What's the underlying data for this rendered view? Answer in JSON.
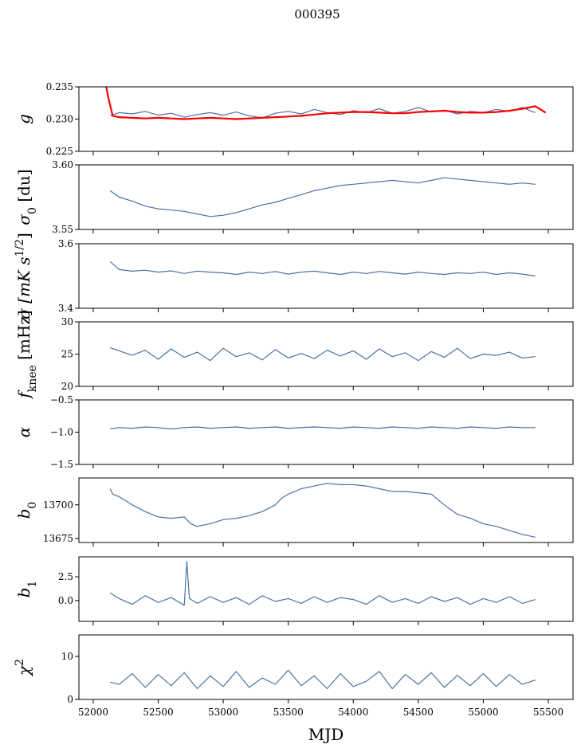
{
  "title": "000395",
  "xlabel": "MJD",
  "colors": {
    "series": "#4c72a0",
    "gain_fit": "#ff0000",
    "frame": "#000000"
  },
  "chart_data": [
    {
      "type": "line",
      "id": "g",
      "ylabel": "g",
      "ylabel_sub": "",
      "ylim": [
        0.225,
        0.235
      ],
      "yticks": [
        0.225,
        0.23,
        0.235
      ],
      "ytick_labels": [
        "0.225",
        "0.230",
        "0.235"
      ],
      "series": [
        {
          "name": "g",
          "color": "#4c72a0",
          "x": [
            52130,
            52200,
            52300,
            52400,
            52500,
            52600,
            52700,
            52800,
            52900,
            53000,
            53100,
            53200,
            53300,
            53400,
            53500,
            53600,
            53700,
            53800,
            53900,
            54000,
            54100,
            54200,
            54300,
            54400,
            54500,
            54600,
            54700,
            54800,
            54900,
            55000,
            55100,
            55200,
            55300,
            55400
          ],
          "y": [
            0.2305,
            0.231,
            0.2308,
            0.2312,
            0.2306,
            0.2309,
            0.2303,
            0.2307,
            0.231,
            0.2306,
            0.2311,
            0.2305,
            0.2302,
            0.2309,
            0.2312,
            0.2308,
            0.2315,
            0.231,
            0.2307,
            0.2313,
            0.231,
            0.2316,
            0.2309,
            0.2312,
            0.2318,
            0.2311,
            0.2314,
            0.2308,
            0.2312,
            0.231,
            0.2315,
            0.2312,
            0.2318,
            0.231
          ]
        },
        {
          "name": "gain fit",
          "color": "#ff0000",
          "x": [
            52100,
            52120,
            52150,
            52200,
            52300,
            52400,
            52500,
            52600,
            52700,
            52800,
            52900,
            53000,
            53100,
            53200,
            53300,
            53400,
            53500,
            53600,
            53700,
            53800,
            53900,
            54000,
            54100,
            54200,
            54300,
            54400,
            54500,
            54600,
            54700,
            54800,
            54900,
            55000,
            55100,
            55200,
            55300,
            55400,
            55480
          ],
          "y": [
            0.235,
            0.233,
            0.2305,
            0.2303,
            0.2302,
            0.2301,
            0.2302,
            0.2301,
            0.23,
            0.2301,
            0.2302,
            0.2301,
            0.23,
            0.2301,
            0.2302,
            0.2303,
            0.2304,
            0.2305,
            0.2307,
            0.2309,
            0.231,
            0.2311,
            0.2311,
            0.231,
            0.2309,
            0.2309,
            0.2311,
            0.2312,
            0.2313,
            0.2311,
            0.231,
            0.231,
            0.2311,
            0.2313,
            0.2316,
            0.232,
            0.231
          ]
        }
      ]
    },
    {
      "type": "line",
      "id": "sigma0",
      "ylabel": "σ",
      "ylabel_sub": "0",
      "ylabel_suffix": " [du]",
      "ylim": [
        3.55,
        3.6
      ],
      "yticks": [
        3.55,
        3.6
      ],
      "ytick_labels": [
        "3.55",
        "3.60"
      ],
      "series": [
        {
          "name": "sigma0",
          "color": "#4c72a0",
          "x": [
            52130,
            52200,
            52300,
            52400,
            52500,
            52600,
            52700,
            52800,
            52900,
            53000,
            53100,
            53200,
            53300,
            53400,
            53500,
            53600,
            53700,
            53800,
            53900,
            54000,
            54100,
            54200,
            54300,
            54400,
            54500,
            54600,
            54700,
            54800,
            54900,
            55000,
            55100,
            55200,
            55300,
            55400
          ],
          "y": [
            3.58,
            3.575,
            3.572,
            3.568,
            3.566,
            3.565,
            3.564,
            3.562,
            3.56,
            3.561,
            3.563,
            3.566,
            3.569,
            3.571,
            3.574,
            3.577,
            3.58,
            3.582,
            3.584,
            3.585,
            3.586,
            3.587,
            3.588,
            3.587,
            3.586,
            3.588,
            3.59,
            3.589,
            3.588,
            3.587,
            3.586,
            3.585,
            3.586,
            3.585
          ]
        }
      ]
    },
    {
      "type": "line",
      "id": "sigma",
      "ylabel": "σ [mK s",
      "ylabel_sup": "1/2",
      "ylabel_suffix": "]",
      "ylim": [
        3.4,
        3.6
      ],
      "yticks": [
        3.4,
        3.6
      ],
      "ytick_labels": [
        "3.4",
        "3.6"
      ],
      "series": [
        {
          "name": "sigma",
          "color": "#4c72a0",
          "x": [
            52130,
            52200,
            52300,
            52400,
            52500,
            52600,
            52700,
            52800,
            52900,
            53000,
            53100,
            53200,
            53300,
            53400,
            53500,
            53600,
            53700,
            53800,
            53900,
            54000,
            54100,
            54200,
            54300,
            54400,
            54500,
            54600,
            54700,
            54800,
            54900,
            55000,
            55100,
            55200,
            55300,
            55400
          ],
          "y": [
            3.545,
            3.52,
            3.515,
            3.518,
            3.512,
            3.516,
            3.508,
            3.515,
            3.512,
            3.51,
            3.505,
            3.512,
            3.508,
            3.514,
            3.506,
            3.512,
            3.515,
            3.51,
            3.505,
            3.512,
            3.508,
            3.514,
            3.51,
            3.506,
            3.512,
            3.508,
            3.505,
            3.51,
            3.508,
            3.512,
            3.505,
            3.51,
            3.506,
            3.5
          ]
        }
      ]
    },
    {
      "type": "line",
      "id": "fknee",
      "ylabel": "f",
      "ylabel_sub": "knee",
      "ylabel_suffix": " [mHz]",
      "ylim": [
        20,
        30
      ],
      "yticks": [
        20,
        25,
        30
      ],
      "ytick_labels": [
        "20",
        "25",
        "30"
      ],
      "series": [
        {
          "name": "fknee",
          "color": "#4c72a0",
          "x": [
            52130,
            52200,
            52300,
            52400,
            52500,
            52600,
            52700,
            52800,
            52900,
            53000,
            53100,
            53200,
            53300,
            53400,
            53500,
            53600,
            53700,
            53800,
            53900,
            54000,
            54100,
            54200,
            54300,
            54400,
            54500,
            54600,
            54700,
            54800,
            54900,
            55000,
            55100,
            55200,
            55300,
            55400
          ],
          "y": [
            26.0,
            25.5,
            24.8,
            25.6,
            24.2,
            25.8,
            24.5,
            25.3,
            24.0,
            25.9,
            24.6,
            25.2,
            24.1,
            25.7,
            24.4,
            25.1,
            24.3,
            25.6,
            24.7,
            25.5,
            24.2,
            25.8,
            24.6,
            25.2,
            24.0,
            25.4,
            24.5,
            25.9,
            24.3,
            25.0,
            24.8,
            25.3,
            24.4,
            24.6
          ]
        }
      ]
    },
    {
      "type": "line",
      "id": "alpha",
      "ylabel": "α",
      "ylabel_sub": "",
      "ylim": [
        -1.5,
        -0.5
      ],
      "yticks": [
        -1.5,
        -1.0,
        -0.5
      ],
      "ytick_labels": [
        "−1.5",
        "−1.0",
        "−0.5"
      ],
      "series": [
        {
          "name": "alpha",
          "color": "#4c72a0",
          "x": [
            52130,
            52200,
            52300,
            52400,
            52500,
            52600,
            52700,
            52800,
            52900,
            53000,
            53100,
            53200,
            53300,
            53400,
            53500,
            53600,
            53700,
            53800,
            53900,
            54000,
            54100,
            54200,
            54300,
            54400,
            54500,
            54600,
            54700,
            54800,
            54900,
            55000,
            55100,
            55200,
            55300,
            55400
          ],
          "y": [
            -0.95,
            -0.93,
            -0.94,
            -0.92,
            -0.93,
            -0.95,
            -0.93,
            -0.92,
            -0.94,
            -0.93,
            -0.92,
            -0.94,
            -0.93,
            -0.92,
            -0.94,
            -0.93,
            -0.92,
            -0.93,
            -0.94,
            -0.92,
            -0.93,
            -0.94,
            -0.92,
            -0.93,
            -0.94,
            -0.92,
            -0.93,
            -0.94,
            -0.92,
            -0.93,
            -0.94,
            -0.92,
            -0.93,
            -0.93
          ]
        }
      ]
    },
    {
      "type": "line",
      "id": "b0",
      "ylabel": "b",
      "ylabel_sub": "0",
      "ylim": [
        13672,
        13720
      ],
      "yticks": [
        13675,
        13700
      ],
      "ytick_labels": [
        "13675",
        "13700"
      ],
      "series": [
        {
          "name": "b0",
          "color": "#4c72a0",
          "x": [
            52130,
            52150,
            52200,
            52300,
            52400,
            52500,
            52600,
            52700,
            52750,
            52800,
            52900,
            53000,
            53100,
            53200,
            53300,
            53400,
            53450,
            53500,
            53600,
            53700,
            53800,
            53900,
            54000,
            54100,
            54200,
            54300,
            54400,
            54500,
            54600,
            54700,
            54800,
            54900,
            55000,
            55100,
            55200,
            55300,
            55400
          ],
          "y": [
            13712,
            13708,
            13706,
            13700,
            13695,
            13691,
            13690,
            13691,
            13686,
            13684,
            13686,
            13689,
            13690,
            13692,
            13695,
            13700,
            13705,
            13708,
            13712,
            13714,
            13716,
            13715,
            13715,
            13714,
            13712,
            13710,
            13710,
            13709,
            13708,
            13700,
            13693,
            13690,
            13686,
            13684,
            13681,
            13678,
            13676
          ]
        }
      ]
    },
    {
      "type": "line",
      "id": "b1",
      "ylabel": "b",
      "ylabel_sub": "1",
      "ylim": [
        -2.2,
        4.6
      ],
      "yticks": [
        0.0,
        2.5
      ],
      "ytick_labels": [
        "0.0",
        "2.5"
      ],
      "series": [
        {
          "name": "b1",
          "color": "#4c72a0",
          "x": [
            52130,
            52200,
            52300,
            52400,
            52500,
            52600,
            52700,
            52720,
            52740,
            52800,
            52900,
            53000,
            53100,
            53200,
            53300,
            53400,
            53500,
            53600,
            53700,
            53800,
            53900,
            54000,
            54100,
            54200,
            54300,
            54400,
            54500,
            54600,
            54700,
            54800,
            54900,
            55000,
            55100,
            55200,
            55300,
            55400
          ],
          "y": [
            0.8,
            0.2,
            -0.4,
            0.5,
            -0.2,
            0.3,
            -0.5,
            4.1,
            0.2,
            -0.3,
            0.4,
            -0.2,
            0.3,
            -0.4,
            0.5,
            -0.1,
            0.2,
            -0.3,
            0.4,
            -0.2,
            0.3,
            0.1,
            -0.4,
            0.5,
            -0.2,
            0.2,
            -0.3,
            0.4,
            -0.1,
            0.3,
            -0.4,
            0.2,
            -0.2,
            0.4,
            -0.3,
            0.1
          ]
        }
      ]
    },
    {
      "type": "line",
      "id": "chi2",
      "ylabel": "χ",
      "ylabel_sup": "2",
      "ylim": [
        0,
        15
      ],
      "yticks": [
        0,
        10
      ],
      "ytick_labels": [
        "0",
        "10"
      ],
      "series": [
        {
          "name": "chi2",
          "color": "#4c72a0",
          "x": [
            52130,
            52200,
            52300,
            52400,
            52500,
            52600,
            52700,
            52800,
            52900,
            53000,
            53100,
            53200,
            53300,
            53400,
            53500,
            53600,
            53700,
            53800,
            53900,
            54000,
            54100,
            54200,
            54300,
            54400,
            54500,
            54600,
            54700,
            54800,
            54900,
            55000,
            55100,
            55200,
            55300,
            55400
          ],
          "y": [
            4.0,
            3.5,
            6.0,
            2.8,
            5.8,
            3.2,
            6.2,
            2.5,
            5.5,
            3.0,
            6.5,
            2.8,
            5.0,
            3.5,
            6.8,
            3.2,
            5.5,
            2.5,
            6.0,
            3.0,
            4.2,
            6.5,
            2.5,
            5.8,
            3.5,
            6.2,
            2.8,
            5.6,
            3.2,
            6.0,
            3.0,
            5.8,
            3.5,
            4.5
          ]
        }
      ]
    }
  ],
  "xaxis": {
    "xlim": [
      51890,
      55690
    ],
    "ticks": [
      52000,
      52500,
      53000,
      53500,
      54000,
      54500,
      55000,
      55500
    ],
    "tick_labels": [
      "52000",
      "52500",
      "53000",
      "53500",
      "54000",
      "54500",
      "55000",
      "55500"
    ]
  }
}
